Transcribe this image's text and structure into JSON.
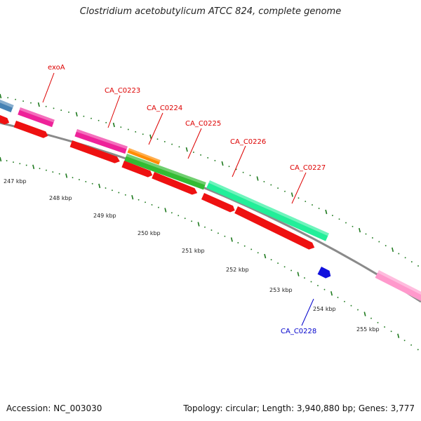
{
  "header": {
    "title": "Clostridium acetobutylicum ATCC 824, complete genome"
  },
  "footer": {
    "accession": "Accession: NC_003030",
    "summary": "Topology: circular; Length: 3,940,880 bp; Genes: 3,777"
  },
  "scale_labels": [
    "247 kbp",
    "248 kbp",
    "249 kbp",
    "250 kbp",
    "251 kbp",
    "252 kbp",
    "253 kbp",
    "254 kbp",
    "255 kbp"
  ],
  "gene_labels": [
    "exoA",
    "CA_C0223",
    "CA_C0224",
    "CA_C0225",
    "CA_C0226",
    "CA_C0227",
    "CA_C0228"
  ],
  "colors": {
    "backbone": "#8a8a8a",
    "ticks": "#1f7a1f",
    "label_red": "#dd0000",
    "label_blue": "#0000cc",
    "cds_red": "#ee1111",
    "magenta": "#ee2299",
    "orange": "#ff8c00",
    "green": "#33bb33",
    "aqua": "#22ee99",
    "blue": "#1111dd",
    "steel": "#4682b4",
    "pink": "#ff99cc"
  }
}
